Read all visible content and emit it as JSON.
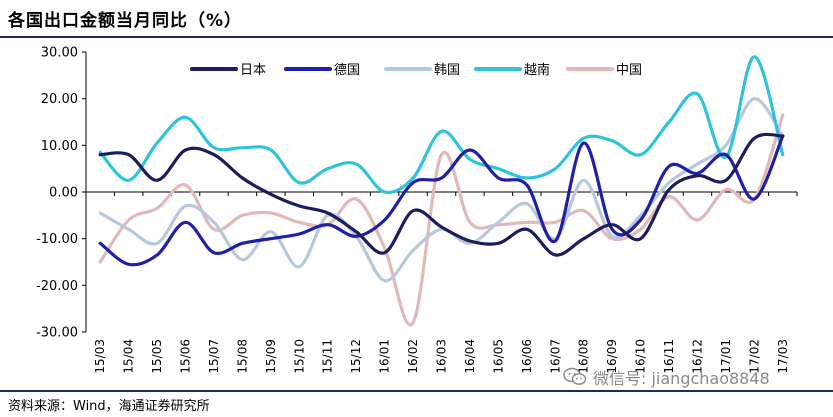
{
  "title": "各国出口金额当月同比（%）",
  "source": "资料来源：Wind，海通证券研究所",
  "watermark": {
    "text": "微信号: jiangchao8848",
    "icon": "wechat-icon"
  },
  "chart_data": {
    "type": "line",
    "title": "各国出口金额当月同比（%）",
    "xlabel": "",
    "ylabel": "",
    "ylim": [
      -30,
      30
    ],
    "yticks": [
      30,
      20,
      10,
      0,
      -10,
      -20,
      -30
    ],
    "ytick_labels": [
      "30.00",
      "20.00",
      "10.00",
      "0.00",
      "-10.00",
      "-20.00",
      "-30.00"
    ],
    "x": [
      "15/03",
      "15/04",
      "15/05",
      "15/06",
      "15/07",
      "15/08",
      "15/09",
      "15/10",
      "15/11",
      "15/12",
      "16/01",
      "16/02",
      "16/03",
      "16/04",
      "16/05",
      "16/06",
      "16/07",
      "16/08",
      "16/09",
      "16/10",
      "16/11",
      "16/12",
      "17/01",
      "17/02",
      "17/03"
    ],
    "legend_position": "top-center",
    "series": [
      {
        "name": "日本",
        "color": "#1c1c5e",
        "values": [
          8,
          8,
          2.5,
          9,
          8,
          3,
          -0.5,
          -3,
          -4.5,
          -8.5,
          -13,
          -4,
          -7.5,
          -10.5,
          -11,
          -8,
          -13.5,
          -10,
          -7,
          -10,
          0.5,
          3.5,
          2.5,
          11.5,
          12
        ]
      },
      {
        "name": "德国",
        "color": "#1f1fa8",
        "values": [
          -11,
          -15.5,
          -13.5,
          -6.5,
          -13,
          -11,
          -10,
          -9,
          -7,
          -9.5,
          -6,
          2,
          3,
          9,
          3,
          1.5,
          -10.5,
          10.5,
          -8,
          -6,
          5.5,
          4,
          8,
          -1.5,
          12
        ]
      },
      {
        "name": "韩国",
        "color": "#b8c8dc",
        "values": [
          -4.5,
          -8,
          -11,
          -3,
          -6.5,
          -14.5,
          -8.5,
          -16,
          -5,
          -9.5,
          -19,
          -12.5,
          -8,
          -11,
          -6.5,
          -2.5,
          -10,
          2.5,
          -9.5,
          -5,
          2,
          6,
          10,
          20,
          12
        ]
      },
      {
        "name": "越南",
        "color": "#2ec4dc",
        "values": [
          8.5,
          2.5,
          10.5,
          16,
          9.5,
          9.5,
          9,
          2,
          5,
          6,
          0,
          3,
          13,
          7,
          5,
          3,
          5,
          11.5,
          11,
          8,
          15,
          21,
          7.5,
          29,
          8
        ]
      },
      {
        "name": "中国",
        "color": "#e2b8b8",
        "values": [
          -15,
          -6,
          -3.5,
          1.5,
          -8,
          -5,
          -4.5,
          -6.5,
          -7,
          -1.5,
          -12,
          -28,
          8,
          -6.5,
          -7,
          -6.5,
          -6.5,
          -4,
          -10,
          -8,
          -1,
          -6,
          0.5,
          -1.5,
          16.5
        ]
      }
    ]
  }
}
